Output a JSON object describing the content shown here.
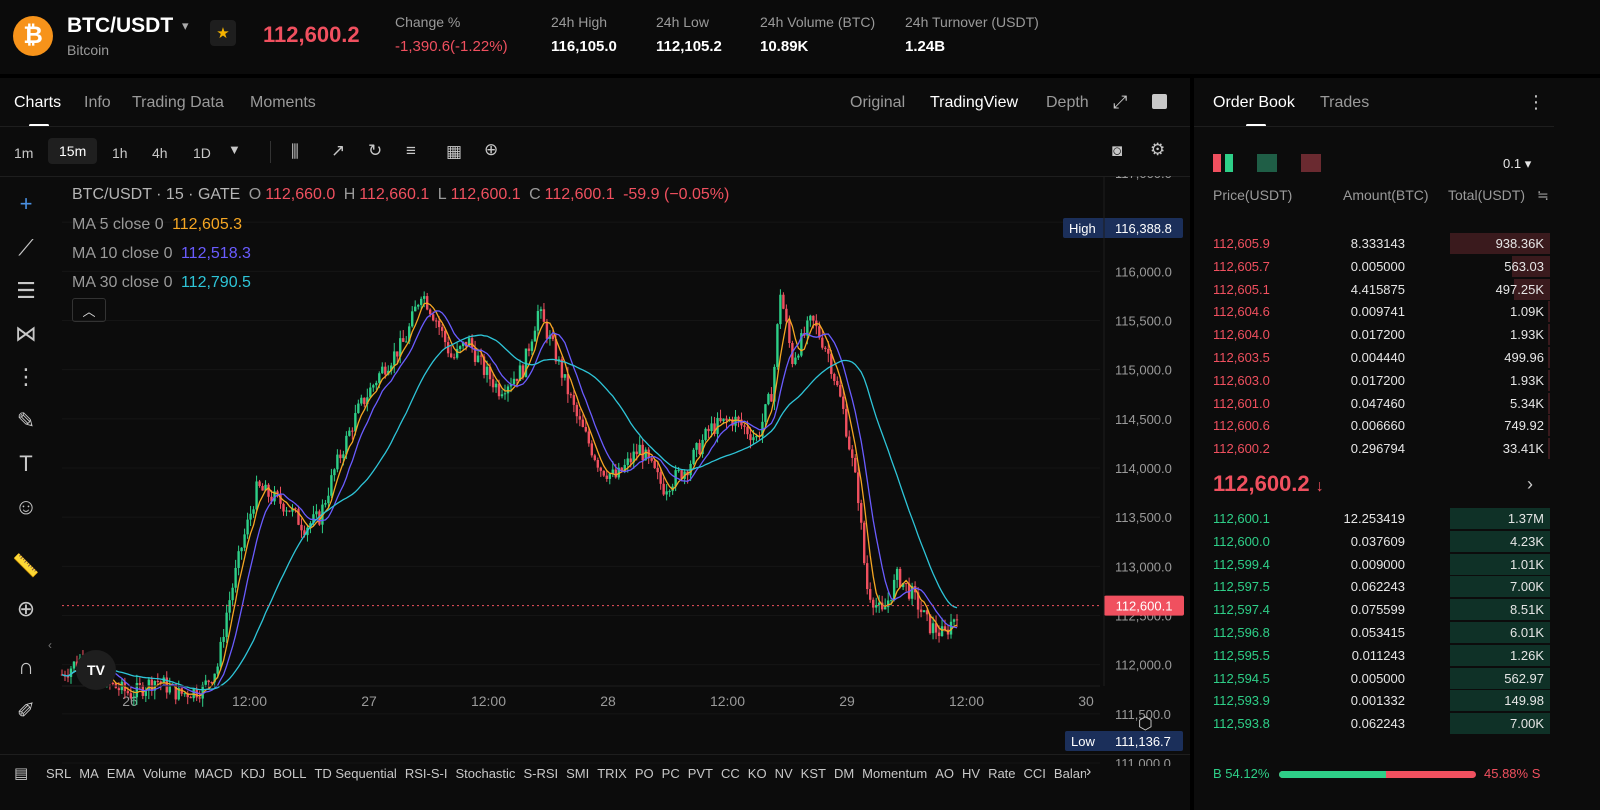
{
  "header": {
    "pair": "BTC/USDT",
    "coin_name": "Bitcoin",
    "logo_glyph": "₿",
    "last_price": "112,600.2",
    "stats": [
      {
        "label": "Change %",
        "value": "-1,390.6(-1.22%)",
        "red": true
      },
      {
        "label": "24h High",
        "value": "116,105.0"
      },
      {
        "label": "24h Low",
        "value": "112,105.2"
      },
      {
        "label": "24h Volume (BTC)",
        "value": "10.89K"
      },
      {
        "label": "24h Turnover (USDT)",
        "value": "1.24B"
      }
    ]
  },
  "chart_tabs": {
    "charts": "Charts",
    "info": "Info",
    "trading_data": "Trading Data",
    "moments": "Moments"
  },
  "view_tabs": {
    "original": "Original",
    "tradingview": "TradingView",
    "depth": "Depth"
  },
  "intervals": [
    "1m",
    "15m",
    "1h",
    "4h",
    "1D"
  ],
  "legend": {
    "symbol": "BTC/USDT · 15 · GATE",
    "o_label": "O",
    "o": "112,660.0",
    "h_label": "H",
    "h": "112,660.1",
    "l_label": "L",
    "l": "112,600.1",
    "c_label": "C",
    "c": "112,600.1",
    "change": "-59.9 (−0.05%)",
    "ma5_label": "MA 5 close 0",
    "ma5": "112,605.3",
    "ma10_label": "MA 10 close 0",
    "ma10": "112,518.3",
    "ma30_label": "MA 30 close 0",
    "ma30": "112,790.5"
  },
  "price_axis": {
    "ticks": [
      "117,000.0",
      "116,500.0",
      "116,000.0",
      "115,500.0",
      "115,000.0",
      "114,500.0",
      "114,000.0",
      "113,500.0",
      "113,000.0",
      "112,500.0",
      "112,000.0",
      "111,500.0",
      "111,000.0"
    ],
    "high_label": "High",
    "high_value": "116,388.8",
    "low_label": "Low",
    "low_value": "111,136.7",
    "current": "112,600.1"
  },
  "time_axis": [
    "26",
    "12:00",
    "27",
    "12:00",
    "28",
    "12:00",
    "29",
    "12:00",
    "30"
  ],
  "indicators": [
    "SRL",
    "MA",
    "EMA",
    "Volume",
    "MACD",
    "KDJ",
    "BOLL",
    "TD Sequential",
    "RSI-S-I",
    "Stochastic",
    "S-RSI",
    "SMI",
    "TRIX",
    "PO",
    "PC",
    "PVT",
    "CC",
    "KO",
    "NV",
    "KST",
    "DM",
    "Momentum",
    "AO",
    "HV",
    "Rate",
    "CCI",
    "Balan"
  ],
  "chart_data": {
    "type": "candlestick",
    "x_ticks": [
      "26",
      "12:00",
      "27",
      "12:00",
      "28",
      "12:00",
      "29",
      "12:00",
      "30"
    ],
    "ylim": [
      111000,
      117000
    ],
    "close_path": [
      [
        0,
        111900
      ],
      [
        0.3,
        112100
      ],
      [
        0.6,
        111800
      ],
      [
        0.9,
        111700
      ],
      [
        1.2,
        111850
      ],
      [
        1.5,
        111700
      ],
      [
        1.8,
        111750
      ],
      [
        2.0,
        112000
      ],
      [
        2.1,
        112500
      ],
      [
        2.3,
        113200
      ],
      [
        2.5,
        113800
      ],
      [
        2.7,
        113700
      ],
      [
        2.9,
        113600
      ],
      [
        3.1,
        113400
      ],
      [
        3.3,
        113500
      ],
      [
        3.5,
        114000
      ],
      [
        3.8,
        114600
      ],
      [
        4.1,
        115000
      ],
      [
        4.4,
        115300
      ],
      [
        4.6,
        115800
      ],
      [
        4.8,
        115500
      ],
      [
        5.0,
        115100
      ],
      [
        5.2,
        115300
      ],
      [
        5.4,
        115000
      ],
      [
        5.6,
        114800
      ],
      [
        5.9,
        115000
      ],
      [
        6.1,
        115600
      ],
      [
        6.3,
        115200
      ],
      [
        6.6,
        114500
      ],
      [
        6.9,
        114000
      ],
      [
        7.1,
        113900
      ],
      [
        7.4,
        114200
      ],
      [
        7.7,
        113800
      ],
      [
        8.0,
        114000
      ],
      [
        8.3,
        114400
      ],
      [
        8.6,
        114500
      ],
      [
        8.9,
        114300
      ],
      [
        9.1,
        114800
      ],
      [
        9.2,
        115800
      ],
      [
        9.35,
        115100
      ],
      [
        9.6,
        115500
      ],
      [
        9.8,
        115200
      ],
      [
        10.0,
        114600
      ],
      [
        10.2,
        113700
      ],
      [
        10.3,
        112800
      ],
      [
        10.5,
        112500
      ],
      [
        10.7,
        112900
      ],
      [
        10.9,
        112700
      ],
      [
        11.1,
        112400
      ],
      [
        11.3,
        112300
      ],
      [
        11.5,
        112600
      ]
    ],
    "ma5": "112,605.3",
    "ma10": "112,518.3",
    "ma30": "112,790.5"
  },
  "orderbook": {
    "tabs": {
      "book": "Order Book",
      "trades": "Trades"
    },
    "precision": "0.1",
    "headers": {
      "price": "Price(USDT)",
      "amount": "Amount(BTC)",
      "total": "Total(USDT)"
    },
    "asks": [
      {
        "p": "112,605.9",
        "a": "8.333143",
        "t": "938.36K",
        "w": 1.0
      },
      {
        "p": "112,605.7",
        "a": "0.005000",
        "t": "563.03",
        "w": 0.38
      },
      {
        "p": "112,605.1",
        "a": "4.415875",
        "t": "497.25K",
        "w": 0.36
      },
      {
        "p": "112,604.6",
        "a": "0.009741",
        "t": "1.09K",
        "w": 0.01
      },
      {
        "p": "112,604.0",
        "a": "0.017200",
        "t": "1.93K",
        "w": 0.01
      },
      {
        "p": "112,603.5",
        "a": "0.004440",
        "t": "499.96",
        "w": 0.01
      },
      {
        "p": "112,603.0",
        "a": "0.017200",
        "t": "1.93K",
        "w": 0.01
      },
      {
        "p": "112,601.0",
        "a": "0.047460",
        "t": "5.34K",
        "w": 0.01
      },
      {
        "p": "112,600.6",
        "a": "0.006660",
        "t": "749.92",
        "w": 0.01
      },
      {
        "p": "112,600.2",
        "a": "0.296794",
        "t": "33.41K",
        "w": 0.01
      }
    ],
    "mid_price": "112,600.2",
    "bids": [
      {
        "p": "112,600.1",
        "a": "12.253419",
        "t": "1.37M",
        "w": 1.0
      },
      {
        "p": "112,600.0",
        "a": "0.037609",
        "t": "4.23K",
        "w": 1.0
      },
      {
        "p": "112,599.4",
        "a": "0.009000",
        "t": "1.01K",
        "w": 1.0
      },
      {
        "p": "112,597.5",
        "a": "0.062243",
        "t": "7.00K",
        "w": 1.0
      },
      {
        "p": "112,597.4",
        "a": "0.075599",
        "t": "8.51K",
        "w": 1.0
      },
      {
        "p": "112,596.8",
        "a": "0.053415",
        "t": "6.01K",
        "w": 1.0
      },
      {
        "p": "112,595.5",
        "a": "0.011243",
        "t": "1.26K",
        "w": 1.0
      },
      {
        "p": "112,594.5",
        "a": "0.005000",
        "t": "562.97",
        "w": 1.0
      },
      {
        "p": "112,593.9",
        "a": "0.001332",
        "t": "149.98",
        "w": 1.0
      },
      {
        "p": "112,593.8",
        "a": "0.062243",
        "t": "7.00K",
        "w": 1.0
      }
    ],
    "buy_ratio": "B 54.12%",
    "sell_ratio": "45.88% S",
    "buy_fraction": 0.5412
  },
  "colors": {
    "up": "#2ecf88",
    "down": "#f0505f",
    "ma5": "#f5a623",
    "ma10": "#6a5cff",
    "ma30": "#2ec5d8"
  },
  "icons": [
    "bitcoin-icon",
    "star-icon",
    "fullscreen-icon",
    "camera-icon",
    "gear-icon",
    "crosshair-icon",
    "trend-line-icon",
    "text-icon",
    "emoji-icon",
    "ruler-icon",
    "zoom-icon",
    "magnet-icon",
    "lock-icon"
  ]
}
